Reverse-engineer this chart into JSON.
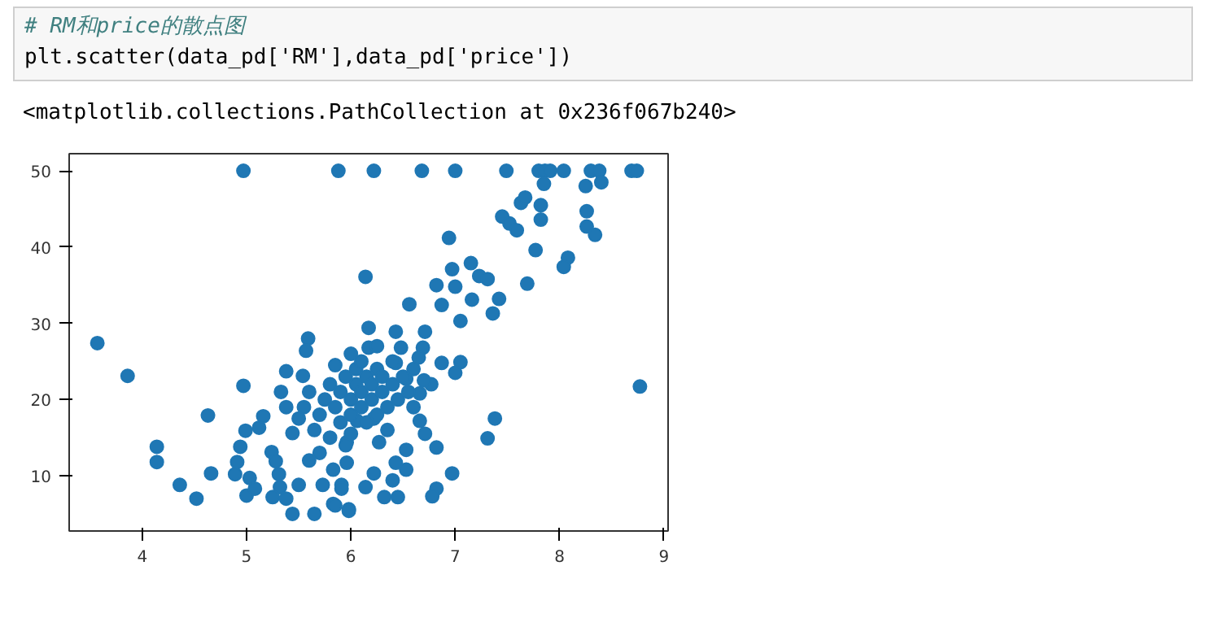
{
  "chart_data": {
    "type": "scatter",
    "annotations": [
      "# RM和price的散点图",
      "plt.scatter(data_pd['RM'],data_pd['price'])",
      "<matplotlib.collections.PathCollection at 0x236f067b240>"
    ],
    "x": [
      3.57,
      3.86,
      4.14,
      4.14,
      4.36,
      4.52,
      4.63,
      4.66,
      4.97,
      4.97,
      4.89,
      4.91,
      4.94,
      4.99,
      5.0,
      5.03,
      5.08,
      5.12,
      5.16,
      5.24,
      5.28,
      5.31,
      5.32,
      5.25,
      5.38,
      5.44,
      5.38,
      5.33,
      5.38,
      5.44,
      5.5,
      5.54,
      5.59,
      5.57,
      5.65,
      5.73,
      5.83,
      5.91,
      5.98,
      5.88,
      6.22,
      6.68,
      7.0,
      7.49,
      7.8,
      7.86,
      7.91,
      8.04,
      8.3,
      8.38,
      8.69,
      8.74,
      7.85,
      8.25,
      8.4,
      8.26,
      7.82,
      7.82,
      7.63,
      7.67,
      7.45,
      7.52,
      7.59,
      8.26,
      8.34,
      7.77,
      8.08,
      8.04,
      6.94,
      6.14,
      7.69,
      8.77,
      7.38,
      7.31,
      6.97,
      6.82,
      6.78,
      6.97,
      7.15,
      7.23,
      7.31,
      7.42,
      7.36,
      7.16,
      7.0,
      6.82,
      6.56,
      6.71,
      6.43,
      6.48,
      6.17,
      6.17,
      6.25,
      6.87,
      7.05,
      6.69,
      6.87,
      7.05,
      7.0,
      6.77,
      6.66,
      6.53,
      6.43,
      6.66,
      6.71,
      6.82,
      6.53,
      6.43,
      6.53,
      6.4,
      6.45,
      6.32,
      6.22,
      6.14,
      5.98,
      5.85,
      5.83,
      5.91,
      6.27,
      6.22,
      6.06,
      5.96,
      5.96,
      5.7,
      5.75,
      5.8,
      5.85,
      5.9,
      5.9,
      5.95,
      6.0,
      6.0,
      6.05,
      6.05,
      6.1,
      6.1,
      6.15,
      6.15,
      6.2,
      6.2,
      6.25,
      6.25,
      6.3,
      6.3,
      6.35,
      6.4,
      6.4,
      6.45,
      6.5,
      6.55,
      6.6,
      6.6,
      5.65,
      5.6,
      5.55,
      5.8,
      6.0,
      5.7,
      5.6,
      5.5,
      6.1,
      5.85,
      6.35,
      6.7,
      6.65,
      6.0,
      5.95
    ],
    "values": [
      27.4,
      23.1,
      13.8,
      11.8,
      8.8,
      7.0,
      17.9,
      10.3,
      50,
      21.8,
      10.2,
      11.8,
      13.8,
      15.9,
      7.4,
      9.7,
      8.3,
      16.3,
      17.8,
      13.1,
      11.9,
      10.2,
      8.5,
      7.2,
      7.0,
      5.0,
      23.7,
      21.0,
      19.0,
      15.6,
      8.8,
      23.1,
      28.0,
      26.4,
      5.0,
      8.8,
      6.3,
      8.8,
      5.6,
      50,
      50,
      50,
      50,
      50,
      50,
      50,
      50,
      50,
      50,
      50,
      50,
      50,
      48.3,
      48.0,
      48.5,
      44.7,
      45.5,
      43.6,
      45.8,
      46.5,
      44.0,
      43.1,
      42.2,
      42.7,
      41.6,
      39.6,
      38.6,
      37.4,
      41.2,
      36.1,
      35.2,
      21.7,
      17.5,
      14.9,
      10.3,
      8.3,
      7.3,
      37.1,
      37.9,
      36.2,
      35.8,
      33.2,
      31.3,
      33.1,
      34.8,
      35.0,
      32.5,
      28.9,
      28.9,
      26.8,
      29.4,
      26.8,
      27.0,
      32.4,
      30.3,
      26.8,
      24.8,
      24.9,
      23.5,
      22.0,
      20.8,
      22.7,
      24.8,
      17.2,
      15.5,
      13.7,
      13.4,
      11.7,
      10.8,
      9.4,
      7.2,
      7.2,
      10.3,
      8.5,
      5.4,
      6.1,
      10.8,
      8.3,
      14.4,
      17.5,
      17.2,
      14.4,
      11.7,
      18,
      20,
      22,
      19,
      21,
      17,
      23,
      20,
      18,
      22,
      24,
      21,
      19,
      23,
      17,
      20,
      22,
      24,
      18,
      21,
      23,
      19,
      22,
      25,
      20,
      23,
      21,
      24,
      19,
      16,
      21,
      19,
      15,
      15.5,
      13,
      12,
      17.5,
      25,
      24.5,
      16,
      22.5,
      25.5,
      26,
      14
    ],
    "color": "#1f77b4",
    "marker": "circle",
    "grid": false,
    "xlim": [
      3.3,
      9.04
    ],
    "ylim": [
      2.75,
      52.25
    ],
    "xticks": [
      4,
      5,
      6,
      7,
      8,
      9
    ],
    "yticks": [
      10,
      20,
      30,
      40,
      50
    ]
  }
}
